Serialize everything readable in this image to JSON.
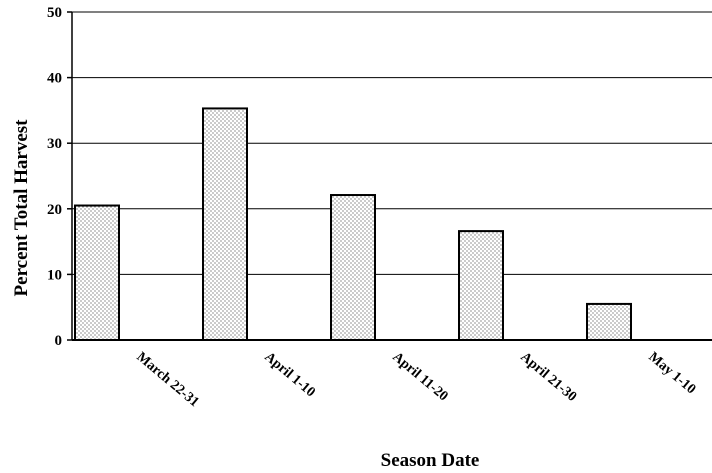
{
  "chart_data": {
    "type": "bar",
    "title": "",
    "xlabel": "Season Date",
    "ylabel": "Percent Total Harvest",
    "categories": [
      "March 22-31",
      "April 1-10",
      "April 11-20",
      "April 21-30",
      "May 1-10"
    ],
    "values": [
      20.5,
      35.3,
      22.1,
      16.6,
      5.5
    ],
    "ylim": [
      0,
      50
    ],
    "yticks": [
      0,
      10,
      20,
      30,
      40,
      50
    ],
    "grid": "horizontal",
    "legend": "none",
    "bar_fill": "dotted",
    "colors": {
      "bar_fill": "#ffffff",
      "bar_dots": "#000000",
      "bar_stroke": "#000000",
      "grid": "#000000"
    }
  }
}
